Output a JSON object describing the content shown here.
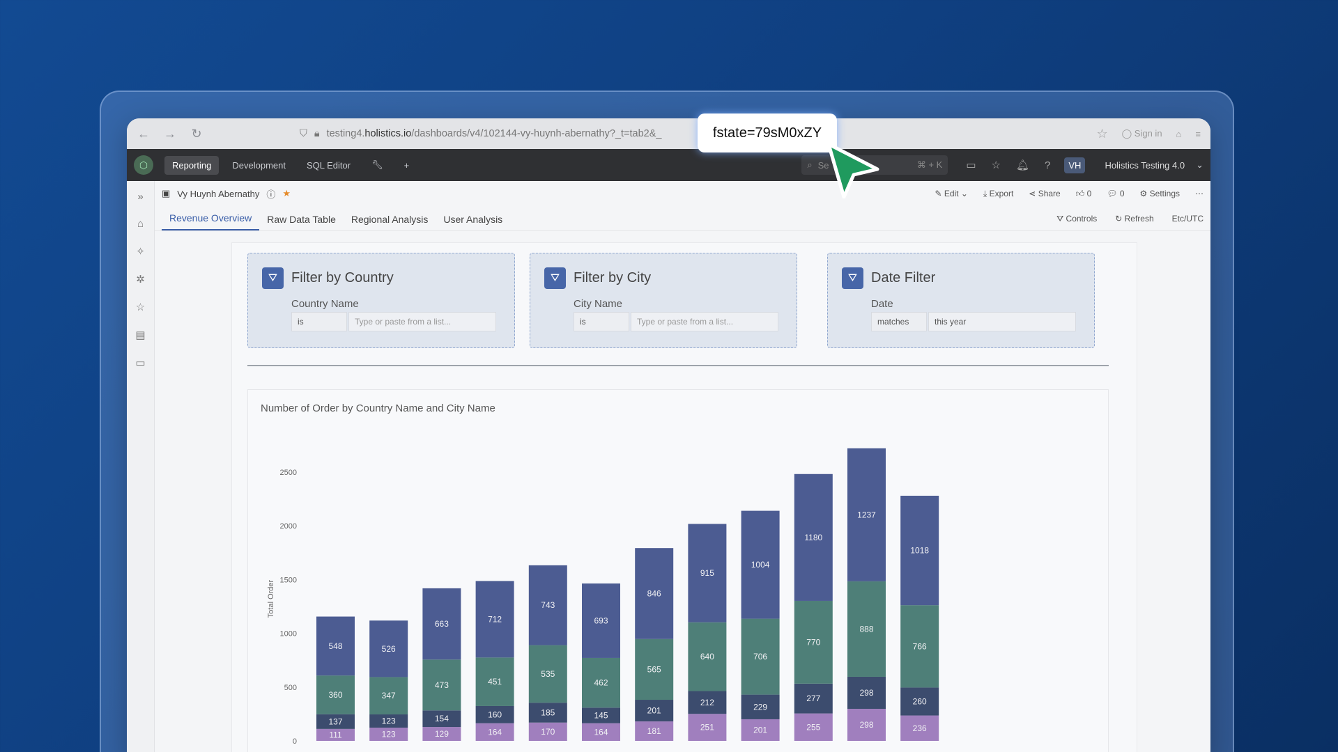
{
  "browser": {
    "url_host": "testing4.",
    "url_domain": "holistics.io",
    "url_path": "/dashboards/v4/102144-vy-huynh-abernathy?_t=tab2&_",
    "sign_in": "Sign in"
  },
  "app": {
    "nav": [
      "Reporting",
      "Development",
      "SQL Editor"
    ],
    "search_placeholder": "Se",
    "search_shortcut": "⌘ + K",
    "avatar": "VH",
    "org": "Holistics Testing 4.0"
  },
  "dashboard": {
    "owner": "Vy Huynh Abernathy",
    "actions": {
      "edit": "Edit",
      "export": "Export",
      "share": "Share",
      "likes": "0",
      "comments": "0",
      "settings": "Settings"
    },
    "tabs": [
      "Revenue Overview",
      "Raw Data Table",
      "Regional Analysis",
      "User Analysis"
    ],
    "tab_actions": {
      "controls": "Controls",
      "refresh": "Refresh",
      "tz": "Etc/UTC"
    }
  },
  "filters": [
    {
      "title": "Filter by Country",
      "label": "Country Name",
      "op": "is",
      "value": "Type or paste from a list..."
    },
    {
      "title": "Filter by City",
      "label": "City Name",
      "op": "is",
      "value": "Type or paste from a list..."
    },
    {
      "title": "Date Filter",
      "label": "Date",
      "op": "matches",
      "value": "this year"
    }
  ],
  "overlay": {
    "tooltip": "fstate=79sM0xZY"
  },
  "chart_data": {
    "type": "bar",
    "title": "Number of Order by Country Name and City Name",
    "ylabel": "Total Order",
    "ylim": [
      0,
      2500
    ],
    "yticks": [
      0,
      500,
      1000,
      1500,
      2000,
      2500
    ],
    "series": [
      {
        "values": [
          111,
          123,
          129,
          164,
          170,
          164,
          181,
          251,
          201,
          255,
          298,
          236
        ],
        "color": "#a07fbe"
      },
      {
        "values": [
          137,
          123,
          154,
          160,
          185,
          145,
          201,
          212,
          229,
          277,
          298,
          260
        ],
        "color": "#3c4c6e"
      },
      {
        "values": [
          360,
          347,
          473,
          451,
          535,
          462,
          565,
          640,
          706,
          770,
          888,
          766
        ],
        "color": "#4e7f78"
      },
      {
        "values": [
          548,
          526,
          663,
          712,
          743,
          693,
          846,
          915,
          1004,
          1180,
          1237,
          1018
        ],
        "color": "#4c5c92"
      }
    ]
  }
}
